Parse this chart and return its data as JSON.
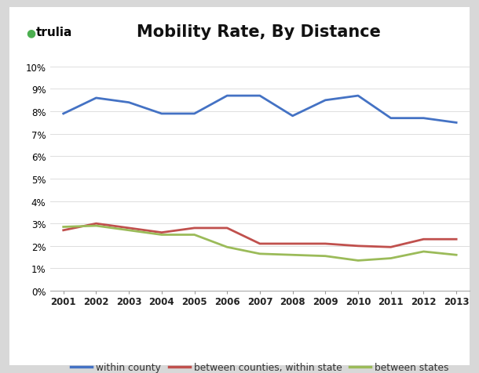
{
  "title": "Mobility Rate, By Distance",
  "years": [
    2001,
    2002,
    2003,
    2004,
    2005,
    2006,
    2007,
    2008,
    2009,
    2010,
    2011,
    2012,
    2013
  ],
  "within_county": [
    0.079,
    0.086,
    0.084,
    0.079,
    0.079,
    0.087,
    0.087,
    0.078,
    0.085,
    0.087,
    0.077,
    0.077,
    0.075
  ],
  "between_counties": [
    0.027,
    0.03,
    0.028,
    0.026,
    0.028,
    0.028,
    0.021,
    0.021,
    0.021,
    0.02,
    0.0195,
    0.023,
    0.023
  ],
  "between_states": [
    0.0285,
    0.029,
    0.027,
    0.025,
    0.025,
    0.0195,
    0.0165,
    0.016,
    0.0155,
    0.0135,
    0.0145,
    0.0175,
    0.016
  ],
  "color_blue": "#4472C4",
  "color_red": "#C0504D",
  "color_green": "#9BBB59",
  "legend_within_county": "within county",
  "legend_between_counties": "between counties, within state",
  "legend_between_states": "between states",
  "ylim": [
    0,
    0.1
  ],
  "yticks": [
    0.0,
    0.01,
    0.02,
    0.03,
    0.04,
    0.05,
    0.06,
    0.07,
    0.08,
    0.09,
    0.1
  ],
  "outer_bg": "#D8D8D8",
  "card_bg": "#FFFFFF",
  "trulia_text": "trulia",
  "trulia_color": "#000000",
  "trulia_pin_color": "#4CAF50",
  "line_width": 2.0
}
